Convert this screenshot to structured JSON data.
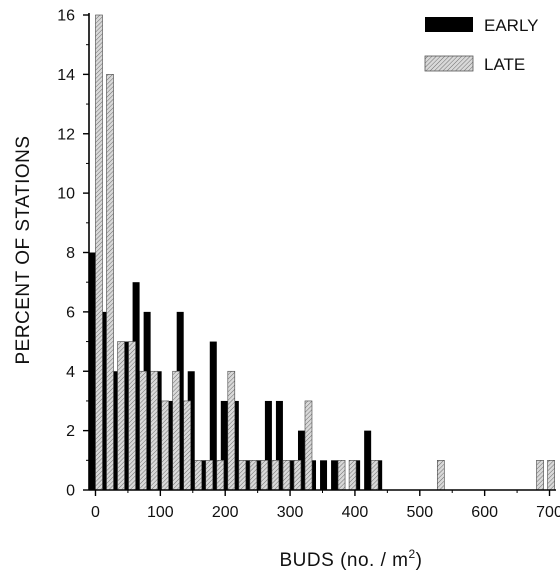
{
  "chart_data": {
    "type": "bar",
    "xlabel": "BUDS (no. / m",
    "xlabel_sup": "2",
    "xlabel_close": ")",
    "ylabel": "PERCENT OF STATIONS",
    "xlim": [
      -10,
      710
    ],
    "ylim": [
      0,
      16
    ],
    "xticks": [
      0,
      100,
      200,
      300,
      400,
      500,
      600,
      700
    ],
    "yticks": [
      0,
      2,
      4,
      6,
      8,
      10,
      12,
      14,
      16
    ],
    "grid": false,
    "legend_position": "top-right",
    "series": [
      {
        "name": "EARLY",
        "color": "#000000",
        "pattern": "solid",
        "x": [
          0,
          17,
          34,
          51,
          68,
          85,
          102,
          119,
          136,
          153,
          170,
          187,
          204,
          221,
          238,
          255,
          272,
          289,
          306,
          323,
          340,
          357,
          374,
          391,
          408,
          425,
          442
        ],
        "values": [
          8,
          6,
          4,
          5,
          7,
          6,
          4,
          3,
          6,
          4,
          1,
          5,
          3,
          3,
          1,
          1,
          3,
          3,
          1,
          2,
          1,
          1,
          1,
          0,
          1,
          2,
          1
        ]
      },
      {
        "name": "LATE",
        "color": "#bdbdbd",
        "pattern": "hatched",
        "x": [
          0,
          17,
          34,
          51,
          68,
          85,
          102,
          119,
          136,
          153,
          170,
          187,
          204,
          221,
          238,
          255,
          272,
          289,
          306,
          323,
          340,
          357,
          374,
          391,
          408,
          425,
          442,
          527,
          680,
          697
        ],
        "values": [
          16,
          14,
          5,
          5,
          4,
          4,
          3,
          4,
          3,
          1,
          1,
          1,
          4,
          1,
          1,
          1,
          1,
          1,
          1,
          3,
          0,
          0,
          1,
          1,
          0,
          1,
          0,
          1,
          1,
          1
        ]
      }
    ]
  }
}
